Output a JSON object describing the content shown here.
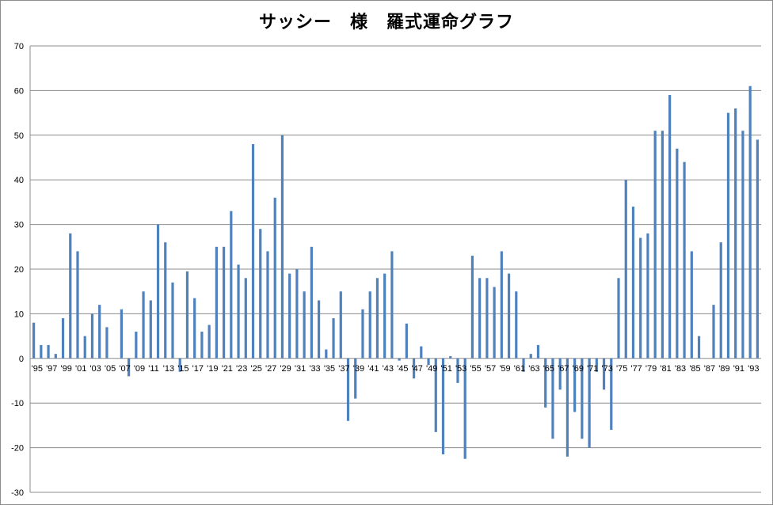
{
  "chart_data": {
    "type": "bar",
    "title": "サッシー　様　羅式運命グラフ",
    "xlabel": "",
    "ylabel": "",
    "ylim": [
      -30,
      70
    ],
    "yticks": [
      -30,
      -20,
      -10,
      0,
      10,
      20,
      30,
      40,
      50,
      60,
      70
    ],
    "grid": true,
    "legend": "none",
    "bar_color": "#4f81bd",
    "categories": [
      "'95",
      "'96",
      "'97",
      "'98",
      "'99",
      "'00",
      "'01",
      "'02",
      "'03",
      "'04",
      "'05",
      "'06",
      "'07",
      "'08",
      "'09",
      "'10",
      "'11",
      "'12",
      "'13",
      "'14",
      "'15",
      "'16",
      "'17",
      "'18",
      "'19",
      "'20",
      "'21",
      "'22",
      "'23",
      "'24",
      "'25",
      "'26",
      "'27",
      "'28",
      "'29",
      "'30",
      "'31",
      "'32",
      "'33",
      "'34",
      "'35",
      "'36",
      "'37",
      "'38",
      "'39",
      "'40",
      "'41",
      "'42",
      "'43",
      "'44",
      "'45",
      "'46",
      "'47",
      "'48",
      "'49",
      "'50",
      "'51",
      "'52",
      "'53",
      "'54",
      "'55",
      "'56",
      "'57",
      "'58",
      "'59",
      "'60",
      "'61",
      "'62",
      "'63",
      "'64",
      "'65",
      "'66",
      "'67",
      "'68",
      "'69",
      "'70",
      "'71",
      "'72",
      "'73",
      "'74",
      "'75",
      "'76",
      "'77",
      "'78",
      "'79",
      "'80",
      "'81",
      "'82",
      "'83",
      "'84",
      "'85",
      "'86",
      "'87",
      "'88",
      "'89",
      "'90",
      "'91",
      "'92",
      "'93",
      "'94"
    ],
    "tick_labels": [
      "'95",
      "'97",
      "'99",
      "'01",
      "'03",
      "'05",
      "'07",
      "'09",
      "'11",
      "'13",
      "'15",
      "'17",
      "'19",
      "'21",
      "'23",
      "'25",
      "'27",
      "'29",
      "'31",
      "'33",
      "'35",
      "'37",
      "'39",
      "'41",
      "'43",
      "'45",
      "'47",
      "'49",
      "'51",
      "'53",
      "'55",
      "'57",
      "'59",
      "'61",
      "'63",
      "'65",
      "'67",
      "'69",
      "'71",
      "'73",
      "'75",
      "'77",
      "'79",
      "'81",
      "'83",
      "'85",
      "'87",
      "'89",
      "'91",
      "'93"
    ],
    "values": [
      8,
      3,
      3,
      1,
      9,
      28,
      24,
      5,
      10,
      12,
      7,
      0,
      11,
      -4,
      6,
      15,
      13,
      30,
      26,
      17,
      -3,
      19.5,
      13.5,
      6,
      7.5,
      25,
      25,
      33,
      21,
      18,
      48,
      29,
      24,
      36,
      50,
      19,
      20,
      15,
      25,
      13,
      2,
      9,
      15,
      -14,
      -9,
      11,
      15,
      18,
      19,
      24,
      -0.5,
      7.8,
      -4.5,
      2.7,
      -1.5,
      -16.5,
      -21.5,
      0.5,
      -5.5,
      -22.5,
      23,
      18,
      18,
      16,
      24,
      19,
      15,
      -3,
      1,
      3,
      -11,
      -18,
      -7,
      -22,
      -12,
      -18,
      -20,
      -3,
      -7,
      -16,
      18,
      40,
      34,
      27,
      28,
      51,
      51,
      59,
      47,
      44,
      24,
      5,
      0,
      12,
      26,
      55,
      56,
      51,
      61,
      49
    ]
  }
}
